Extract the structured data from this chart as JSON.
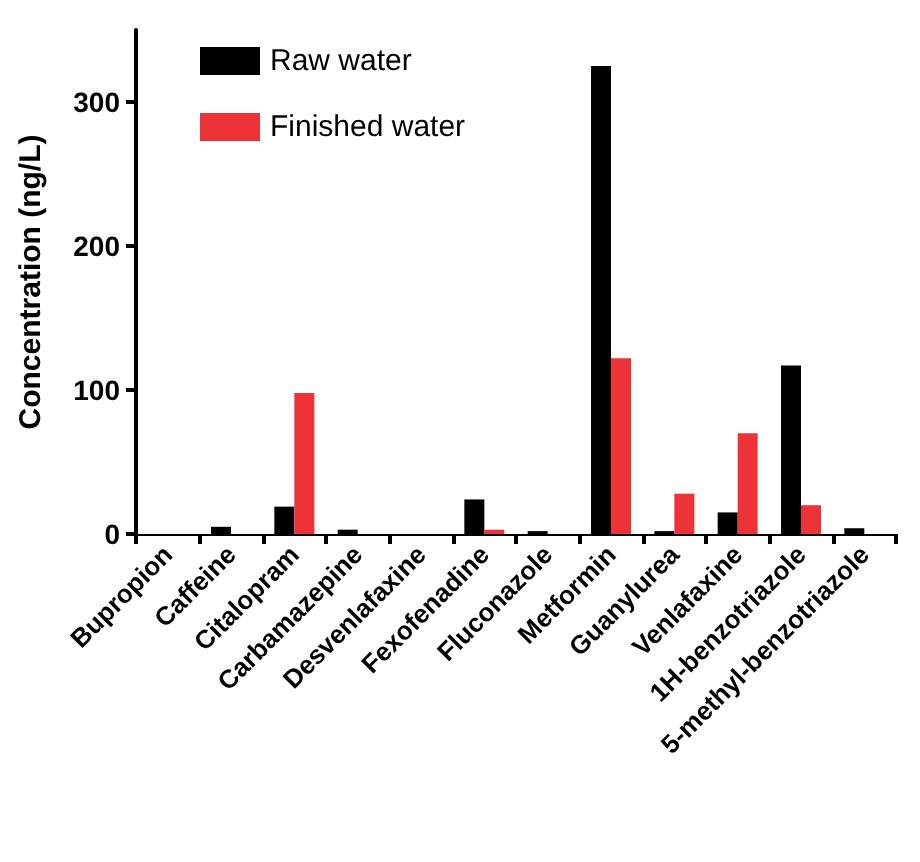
{
  "chart_data": {
    "type": "bar",
    "ylabel": "Concentration (ng/L)",
    "categories": [
      "Bupropion",
      "Caffeine",
      "Citalopram",
      "Carbamazepine",
      "Desvenlafaxine",
      "Fexofenadine",
      "Fluconazole",
      "Metformin",
      "Guanylurea",
      "Venlafaxine",
      "1H-benzotriazole",
      "5-methyl-benzotriazole"
    ],
    "series": [
      {
        "name": "Raw water",
        "color": "#000000",
        "values": [
          0,
          5,
          19,
          3,
          0,
          24,
          2,
          325,
          2,
          15,
          117,
          4
        ]
      },
      {
        "name": "Finished water",
        "color": "#ee3338",
        "values": [
          0,
          0,
          98,
          0,
          0,
          3,
          0,
          122,
          28,
          70,
          20,
          0
        ]
      }
    ],
    "ylim": [
      0,
      350
    ],
    "yticks": [
      0,
      100,
      200,
      300
    ],
    "grid": false,
    "legend": "top left"
  }
}
